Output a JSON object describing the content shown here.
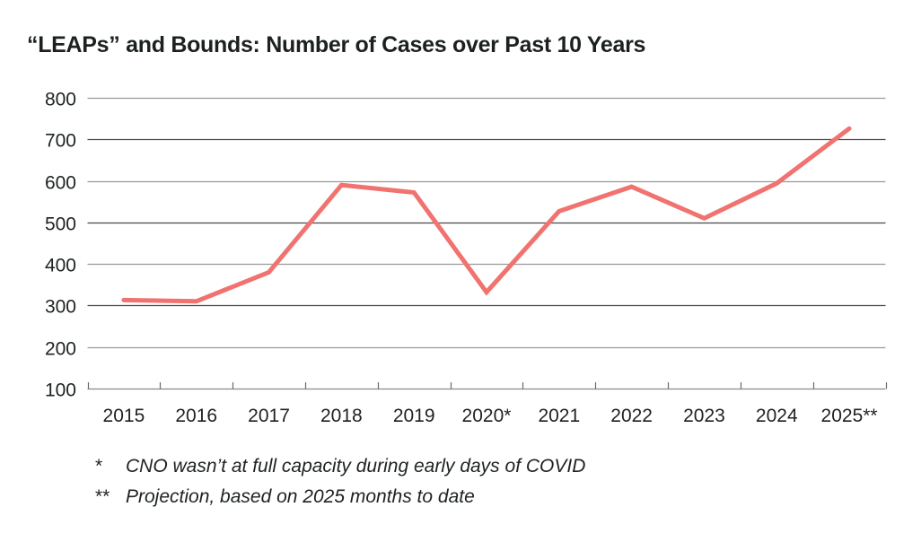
{
  "chart_data": {
    "type": "line",
    "title": "“LEAPs” and Bounds: Number of Cases over Past 10 Years",
    "xlabel": "",
    "ylabel": "",
    "categories": [
      "2015",
      "2016",
      "2017",
      "2018",
      "2019",
      "2020*",
      "2021",
      "2022",
      "2023",
      "2024",
      "2025**"
    ],
    "series": [
      {
        "name": "Number of Cases",
        "values": [
          313,
          310,
          380,
          590,
          572,
          332,
          527,
          586,
          510,
          594,
          726
        ],
        "color": "#f07370"
      }
    ],
    "ylim": [
      100,
      800
    ],
    "yticks": [
      "100",
      "200",
      "300",
      "400",
      "500",
      "600",
      "700",
      "800"
    ],
    "grid": true,
    "legend": "none",
    "footnotes": [
      {
        "mark": "*",
        "text": "CNO wasn’t at full capacity during early days of COVID"
      },
      {
        "mark": "**",
        "text": "Projection, based on 2025 months to date"
      }
    ]
  }
}
